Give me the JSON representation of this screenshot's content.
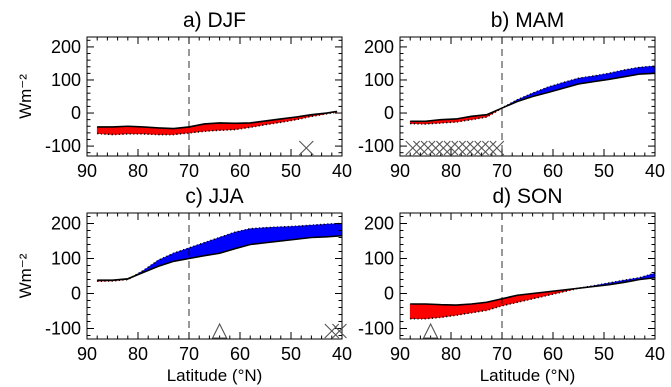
{
  "chart_data": [
    {
      "type": "area",
      "title": "a) DJF",
      "xlabel": "",
      "ylabel": "Wm⁻²",
      "xlim": [
        90,
        40
      ],
      "ylim": [
        -130,
        230
      ],
      "xticks": [
        90,
        80,
        70,
        60,
        50,
        40
      ],
      "yticks": [
        -100,
        0,
        100,
        200
      ],
      "xtick_labels": [
        "90",
        "80",
        "70",
        "60",
        "50",
        "40"
      ],
      "ytick_labels": [
        "-100",
        "0",
        "100",
        "200"
      ],
      "vline_x": 70,
      "x": [
        88,
        85,
        82,
        79,
        76,
        73,
        70,
        67,
        64,
        61,
        58,
        55,
        52,
        49,
        46,
        43,
        41
      ],
      "solid": [
        -42,
        -42,
        -40,
        -42,
        -45,
        -47,
        -42,
        -33,
        -30,
        -31,
        -30,
        -24,
        -18,
        -12,
        -5,
        0,
        5
      ],
      "dotted": [
        -62,
        -65,
        -63,
        -63,
        -65,
        -65,
        -60,
        -55,
        -52,
        -50,
        -43,
        -35,
        -28,
        -20,
        -10,
        -2,
        3
      ],
      "markers": [
        {
          "symbol": "x",
          "x": 47
        }
      ]
    },
    {
      "type": "area",
      "title": "b) MAM",
      "xlabel": "",
      "ylabel": "",
      "xlim": [
        90,
        40
      ],
      "ylim": [
        -130,
        230
      ],
      "xticks": [
        90,
        80,
        70,
        60,
        50,
        40
      ],
      "yticks": [
        -100,
        0,
        100,
        200
      ],
      "xtick_labels": [
        "90",
        "80",
        "70",
        "60",
        "50",
        "40"
      ],
      "ytick_labels": [
        "-100",
        "0",
        "100",
        "200"
      ],
      "vline_x": 70,
      "x": [
        88,
        85,
        82,
        79,
        76,
        73,
        70,
        67,
        64,
        61,
        58,
        55,
        52,
        49,
        46,
        43,
        40
      ],
      "solid": [
        -25,
        -25,
        -20,
        -18,
        -10,
        -5,
        15,
        35,
        50,
        62,
        75,
        88,
        95,
        102,
        110,
        118,
        120
      ],
      "dotted": [
        -32,
        -33,
        -30,
        -27,
        -20,
        -12,
        15,
        40,
        60,
        78,
        92,
        105,
        112,
        120,
        130,
        138,
        142
      ],
      "markers": [
        {
          "symbol": "x",
          "x": 87.5
        },
        {
          "symbol": "x",
          "x": 86
        },
        {
          "symbol": "x",
          "x": 84.5
        },
        {
          "symbol": "x",
          "x": 83
        },
        {
          "symbol": "x",
          "x": 81.5
        },
        {
          "symbol": "x",
          "x": 80
        },
        {
          "symbol": "x",
          "x": 78.5
        },
        {
          "symbol": "x",
          "x": 77
        },
        {
          "symbol": "x",
          "x": 75.5
        },
        {
          "symbol": "x",
          "x": 74
        },
        {
          "symbol": "x",
          "x": 72.5
        },
        {
          "symbol": "x",
          "x": 71
        }
      ]
    },
    {
      "type": "area",
      "title": "c) JJA",
      "xlabel": "Latitude (°N)",
      "ylabel": "Wm⁻²",
      "xlim": [
        90,
        40
      ],
      "ylim": [
        -130,
        230
      ],
      "xticks": [
        90,
        80,
        70,
        60,
        50,
        40
      ],
      "yticks": [
        -100,
        0,
        100,
        200
      ],
      "xtick_labels": [
        "90",
        "80",
        "70",
        "60",
        "50",
        "40"
      ],
      "ytick_labels": [
        "-100",
        "0",
        "100",
        "200"
      ],
      "vline_x": 70,
      "x": [
        88,
        85,
        82,
        79,
        76,
        73,
        70,
        67,
        64,
        61,
        58,
        55,
        52,
        49,
        46,
        43,
        40
      ],
      "solid": [
        38,
        38,
        42,
        60,
        78,
        92,
        100,
        108,
        115,
        128,
        140,
        145,
        150,
        155,
        160,
        162,
        165
      ],
      "dotted": [
        35,
        36,
        40,
        65,
        95,
        115,
        130,
        145,
        160,
        175,
        185,
        188,
        190,
        192,
        195,
        198,
        200
      ],
      "markers": [
        {
          "symbol": "triangle",
          "x": 64
        },
        {
          "symbol": "x",
          "x": 42
        },
        {
          "symbol": "x",
          "x": 40.5
        }
      ]
    },
    {
      "type": "area",
      "title": "d) SON",
      "xlabel": "Latitude (°N)",
      "ylabel": "",
      "xlim": [
        90,
        40
      ],
      "ylim": [
        -130,
        230
      ],
      "xticks": [
        90,
        80,
        70,
        60,
        50,
        40
      ],
      "yticks": [
        -100,
        0,
        100,
        200
      ],
      "xtick_labels": [
        "90",
        "80",
        "70",
        "60",
        "50",
        "40"
      ],
      "ytick_labels": [
        "-100",
        "0",
        "100",
        "200"
      ],
      "vline_x": 70,
      "x": [
        88,
        85,
        82,
        79,
        76,
        73,
        70,
        67,
        64,
        61,
        58,
        55,
        52,
        49,
        46,
        43,
        40
      ],
      "solid": [
        -30,
        -30,
        -32,
        -33,
        -30,
        -25,
        -15,
        -5,
        0,
        5,
        10,
        15,
        20,
        25,
        32,
        40,
        45
      ],
      "dotted": [
        -72,
        -72,
        -68,
        -62,
        -55,
        -48,
        -35,
        -25,
        -15,
        -5,
        5,
        15,
        22,
        30,
        38,
        45,
        58
      ],
      "markers": [
        {
          "symbol": "triangle",
          "x": 84
        }
      ]
    }
  ],
  "colors": {
    "positive_fill": "#0000ff",
    "negative_fill": "#ff0000",
    "line": "#000000",
    "background": "#ffffff"
  }
}
